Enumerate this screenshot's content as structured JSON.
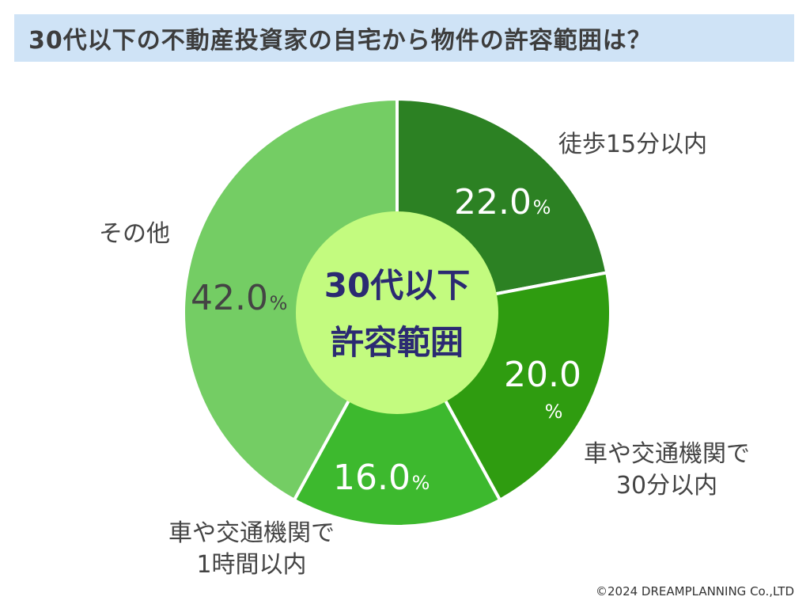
{
  "header": {
    "title": "30代以下の不動産投資家の自宅から物件の許容範囲は？"
  },
  "center_label": {
    "line1": "30代以下",
    "line2": "許容範囲"
  },
  "colors": {
    "title_bg": "#cfe3f6",
    "center_fill": "#c3fb7f",
    "center_text": "#2b2a72",
    "slice_colors": [
      "#2c8123",
      "#2f9c10",
      "#3db92e",
      "#74cd64"
    ]
  },
  "percent_sign": "%",
  "chart_data": {
    "type": "pie",
    "style": "donut",
    "start_angle_deg": 0,
    "direction": "clockwise",
    "slices": [
      {
        "label_lines": [
          "徒歩15分以内"
        ],
        "value": 22.0,
        "display": "22.0"
      },
      {
        "label_lines": [
          "車や交通機関で",
          "30分以内"
        ],
        "value": 20.0,
        "display": "20.0"
      },
      {
        "label_lines": [
          "車や交通機関で",
          "1時間以内"
        ],
        "value": 16.0,
        "display": "16.0"
      },
      {
        "label_lines": [
          "その他"
        ],
        "value": 42.0,
        "display": "42.0"
      }
    ]
  },
  "footer": {
    "copyright": "©2024 DREAMPLANNING Co.,LTD"
  }
}
